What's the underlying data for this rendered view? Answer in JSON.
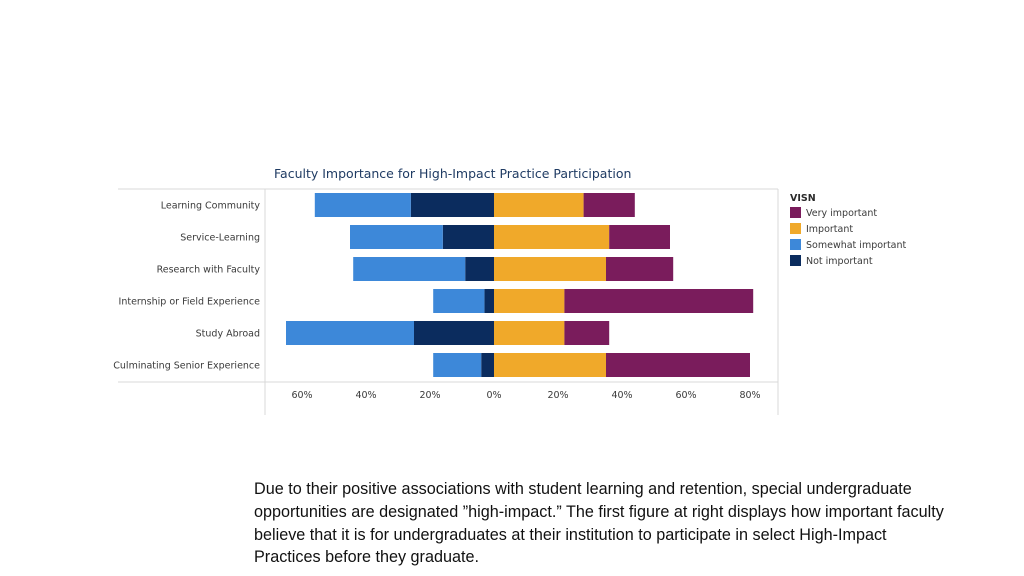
{
  "colors": {
    "very_important": "#7a1c5c",
    "important": "#f0a92a",
    "somewhat_important": "#3d88d9",
    "not_important": "#0b2c5e"
  },
  "chart_data": {
    "type": "bar",
    "orientation": "horizontal-diverging",
    "title": "Faculty Importance for High-Impact Practice Participation",
    "categories": [
      "Learning Community",
      "Service-Learning",
      "Research with Faculty",
      "Internship or Field Experience",
      "Study Abroad",
      "Culminating Senior Experience"
    ],
    "series": [
      {
        "name": "Very important",
        "direction": "positive",
        "values": [
          16,
          19,
          21,
          59,
          14,
          45
        ]
      },
      {
        "name": "Important",
        "direction": "positive",
        "values": [
          28,
          36,
          35,
          22,
          22,
          35
        ]
      },
      {
        "name": "Somewhat important",
        "direction": "negative",
        "values": [
          30,
          29,
          35,
          16,
          40,
          15
        ]
      },
      {
        "name": "Not important",
        "direction": "negative",
        "values": [
          26,
          16,
          9,
          3,
          25,
          4
        ]
      }
    ],
    "xlim": [
      -60,
      80
    ],
    "x_ticks": [
      -60,
      -40,
      -20,
      0,
      20,
      40,
      60,
      80
    ],
    "x_tick_labels": [
      "60%",
      "40%",
      "20%",
      "0%",
      "20%",
      "40%",
      "60%",
      "80%"
    ],
    "legend": {
      "title": "VISN",
      "position": "right",
      "entries": [
        "Very important",
        "Important",
        "Somewhat important",
        "Not important"
      ]
    }
  },
  "caption": "Due to their positive associations with student learning and retention, special undergraduate opportunities are designated ”high-impact.” The first figure at right displays how important faculty believe that it is for undergraduates at their institution to participate in select High-Impact Practices before they graduate."
}
